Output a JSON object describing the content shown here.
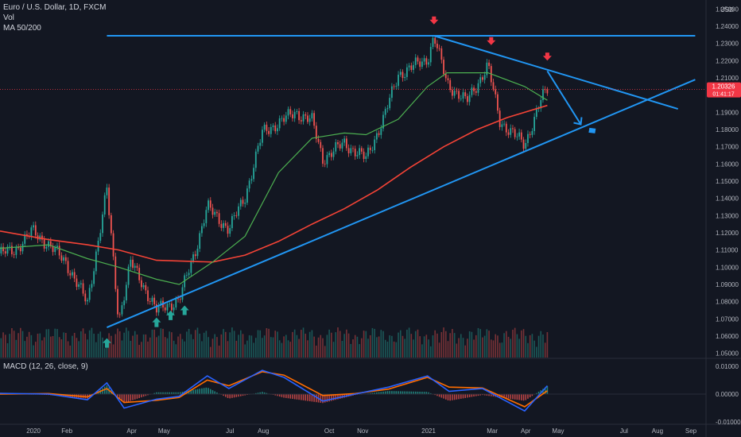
{
  "header": {
    "symbol_line": "Euro / U.S. Dollar, 1D, FXCM",
    "vol_label": "Vol",
    "ma_label": "MA 50/200",
    "macd_label": "MACD (12, 26, close, 9)"
  },
  "price_badge": {
    "price": "1.20326",
    "countdown": "01:41:17",
    "color": "#f23645"
  },
  "colors": {
    "background": "#131722",
    "up": "#26a69a",
    "down": "#ef5350",
    "ma50": "#4caf50",
    "ma200": "#f44336",
    "trendline": "#2196f3",
    "arrow_down": "#f23645",
    "arrow_up": "#26a69a"
  },
  "chart_data": {
    "type": "candlestick",
    "title": "Euro / U.S. Dollar, 1D, FXCM",
    "currency_label": "USD",
    "price_axis": {
      "ticks": [
        "1.25000",
        "1.24000",
        "1.23000",
        "1.22000",
        "1.21000",
        "1.19000",
        "1.18000",
        "1.17000",
        "1.16000",
        "1.15000",
        "1.14000",
        "1.13000",
        "1.12000",
        "1.11000",
        "1.10000",
        "1.09000",
        "1.08000",
        "1.07000",
        "1.06000",
        "1.05000"
      ],
      "range": [
        1.0475,
        1.2525
      ]
    },
    "macd_axis": {
      "ticks": [
        "0.01000",
        "0.00000",
        "-0.01000"
      ],
      "range": [
        -0.0105,
        0.0125
      ]
    },
    "time_axis": {
      "labels": [
        "2020",
        "Feb",
        "Apr",
        "May",
        "Jul",
        "Aug",
        "Oct",
        "Nov",
        "2021",
        "Mar",
        "Apr",
        "May",
        "Jul",
        "Aug",
        "Sep"
      ],
      "label_dates": [
        "2020-01-01",
        "2020-02-01",
        "2020-04-01",
        "2020-05-01",
        "2020-07-01",
        "2020-08-01",
        "2020-10-01",
        "2020-11-01",
        "2021-01-01",
        "2021-03-01",
        "2021-04-01",
        "2021-05-01",
        "2021-07-01",
        "2021-08-01",
        "2021-09-01"
      ],
      "range": [
        "2019-12-01",
        "2021-09-15"
      ]
    },
    "price_path": [
      [
        "2019-12-01",
        1.108
      ],
      [
        "2019-12-15",
        1.11
      ],
      [
        "2019-12-31",
        1.121
      ],
      [
        "2020-01-15",
        1.113
      ],
      [
        "2020-01-31",
        1.103
      ],
      [
        "2020-02-20",
        1.079
      ],
      [
        "2020-03-09",
        1.145
      ],
      [
        "2020-03-20",
        1.069
      ],
      [
        "2020-03-31",
        1.103
      ],
      [
        "2020-04-24",
        1.075
      ],
      [
        "2020-05-15",
        1.081
      ],
      [
        "2020-05-31",
        1.112
      ],
      [
        "2020-06-10",
        1.135
      ],
      [
        "2020-06-30",
        1.122
      ],
      [
        "2020-07-15",
        1.141
      ],
      [
        "2020-07-31",
        1.178
      ],
      [
        "2020-08-15",
        1.184
      ],
      [
        "2020-08-31",
        1.19
      ],
      [
        "2020-09-15",
        1.185
      ],
      [
        "2020-09-25",
        1.163
      ],
      [
        "2020-10-15",
        1.172
      ],
      [
        "2020-11-04",
        1.163
      ],
      [
        "2020-11-20",
        1.186
      ],
      [
        "2020-12-04",
        1.212
      ],
      [
        "2020-12-31",
        1.221
      ],
      [
        "2021-01-06",
        1.234
      ],
      [
        "2021-01-18",
        1.207
      ],
      [
        "2021-02-05",
        1.196
      ],
      [
        "2021-02-25",
        1.217
      ],
      [
        "2021-03-08",
        1.185
      ],
      [
        "2021-03-31",
        1.171
      ],
      [
        "2021-04-15",
        1.197
      ],
      [
        "2021-04-21",
        1.203
      ]
    ],
    "ma50": [
      [
        "2019-12-01",
        1.111
      ],
      [
        "2020-01-15",
        1.113
      ],
      [
        "2020-02-20",
        1.105
      ],
      [
        "2020-03-20",
        1.1
      ],
      [
        "2020-04-24",
        1.093
      ],
      [
        "2020-05-15",
        1.09
      ],
      [
        "2020-06-15",
        1.103
      ],
      [
        "2020-07-15",
        1.118
      ],
      [
        "2020-08-15",
        1.155
      ],
      [
        "2020-09-15",
        1.175
      ],
      [
        "2020-10-15",
        1.178
      ],
      [
        "2020-11-04",
        1.177
      ],
      [
        "2020-12-04",
        1.186
      ],
      [
        "2020-12-31",
        1.205
      ],
      [
        "2021-01-18",
        1.213
      ],
      [
        "2021-02-25",
        1.213
      ],
      [
        "2021-03-31",
        1.205
      ],
      [
        "2021-04-21",
        1.197
      ]
    ],
    "ma200": [
      [
        "2019-12-01",
        1.121
      ],
      [
        "2020-01-15",
        1.116
      ],
      [
        "2020-02-20",
        1.113
      ],
      [
        "2020-03-20",
        1.11
      ],
      [
        "2020-04-24",
        1.104
      ],
      [
        "2020-06-15",
        1.103
      ],
      [
        "2020-07-15",
        1.107
      ],
      [
        "2020-08-15",
        1.115
      ],
      [
        "2020-09-15",
        1.125
      ],
      [
        "2020-10-15",
        1.134
      ],
      [
        "2020-11-15",
        1.145
      ],
      [
        "2020-12-15",
        1.158
      ],
      [
        "2021-01-15",
        1.17
      ],
      [
        "2021-02-15",
        1.18
      ],
      [
        "2021-03-15",
        1.187
      ],
      [
        "2021-04-21",
        1.194
      ]
    ],
    "trendlines": {
      "horizontal_resistance": [
        [
          "2020-03-09",
          1.2345
        ],
        [
          "2021-09-05",
          1.2345
        ]
      ],
      "upper_descending": [
        [
          "2021-01-06",
          1.2345
        ],
        [
          "2021-08-20",
          1.192
        ]
      ],
      "lower_ascending": [
        [
          "2020-03-09",
          1.065
        ],
        [
          "2021-09-05",
          1.209
        ]
      ],
      "projection": [
        [
          "2021-04-21",
          1.214
        ],
        [
          "2021-05-22",
          1.183
        ]
      ]
    },
    "down_arrows": [
      [
        "2021-01-06",
        1.242
      ],
      [
        "2021-02-28",
        1.23
      ],
      [
        "2021-04-21",
        1.221
      ]
    ],
    "up_arrows": [
      [
        "2020-03-09",
        1.056
      ],
      [
        "2020-04-24",
        1.068
      ],
      [
        "2020-05-07",
        1.072
      ],
      [
        "2020-05-20",
        1.075
      ]
    ],
    "macd_line": [
      [
        "2019-12-01",
        0.0003
      ],
      [
        "2020-01-15",
        0.0
      ],
      [
        "2020-02-20",
        -0.002
      ],
      [
        "2020-03-09",
        0.004
      ],
      [
        "2020-03-25",
        -0.005
      ],
      [
        "2020-04-24",
        -0.0018
      ],
      [
        "2020-05-15",
        -0.0008
      ],
      [
        "2020-06-10",
        0.0065
      ],
      [
        "2020-06-30",
        0.002
      ],
      [
        "2020-07-31",
        0.0085
      ],
      [
        "2020-08-20",
        0.006
      ],
      [
        "2020-09-25",
        -0.0025
      ],
      [
        "2020-10-25",
        0.0
      ],
      [
        "2020-11-25",
        0.0025
      ],
      [
        "2020-12-31",
        0.0065
      ],
      [
        "2021-01-20",
        0.001
      ],
      [
        "2021-02-20",
        0.002
      ],
      [
        "2021-03-31",
        -0.006
      ],
      [
        "2021-04-21",
        0.003
      ]
    ],
    "signal_line": [
      [
        "2019-12-01",
        0.0
      ],
      [
        "2020-01-15",
        0.0002
      ],
      [
        "2020-02-20",
        -0.001
      ],
      [
        "2020-03-09",
        0.002
      ],
      [
        "2020-03-25",
        -0.003
      ],
      [
        "2020-04-24",
        -0.0022
      ],
      [
        "2020-05-15",
        -0.0012
      ],
      [
        "2020-06-10",
        0.005
      ],
      [
        "2020-06-30",
        0.003
      ],
      [
        "2020-07-31",
        0.008
      ],
      [
        "2020-08-20",
        0.0068
      ],
      [
        "2020-09-25",
        -0.0005
      ],
      [
        "2020-10-25",
        0.0002
      ],
      [
        "2020-11-25",
        0.0018
      ],
      [
        "2020-12-31",
        0.006
      ],
      [
        "2021-01-20",
        0.0025
      ],
      [
        "2021-02-20",
        0.0022
      ],
      [
        "2021-03-31",
        -0.0045
      ],
      [
        "2021-04-21",
        0.0012
      ]
    ]
  }
}
